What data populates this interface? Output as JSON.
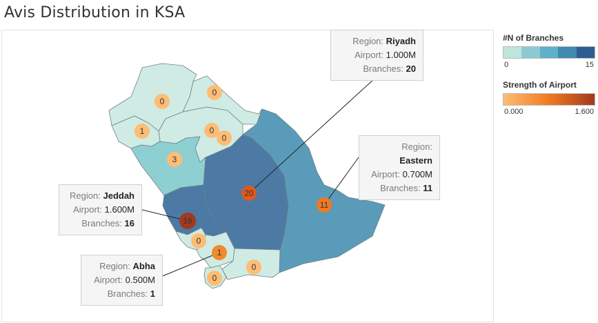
{
  "title": "Avis Distribution in KSA",
  "legend_branches": {
    "title": "#N of Branches",
    "min_label": "0",
    "max_label": "15",
    "colors": [
      "#bde5db",
      "#8ccad3",
      "#5eb1c9",
      "#4189b0",
      "#2e5e91"
    ]
  },
  "legend_strength": {
    "title": "Strength of Airport",
    "min_label": "0.000",
    "max_label": "1.600",
    "color_low": "#fdbd74",
    "color_high": "#a13a1e"
  },
  "tooltips": {
    "riyadh": {
      "region_label": "Region:",
      "region": "Riyadh",
      "airport_label": "Airport:",
      "airport": "1.000M",
      "branches_label": "Branches:",
      "branches": "20"
    },
    "eastern": {
      "region_label": "Region:",
      "region": "Eastern",
      "airport_label": "Airport:",
      "airport": "0.700M",
      "branches_label": "Branches:",
      "branches": "11"
    },
    "jeddah": {
      "region_label": "Region:",
      "region": "Jeddah",
      "airport_label": "Airport:",
      "airport": "1.600M",
      "branches_label": "Branches:",
      "branches": "16"
    },
    "abha": {
      "region_label": "Region:",
      "region": "Abha",
      "airport_label": "Airport:",
      "airport": "0.500M",
      "branches_label": "Branches:",
      "branches": "1"
    }
  },
  "markers": [
    {
      "id": "tabuk",
      "label": "0",
      "branches": 0,
      "color": "#fdbd74"
    },
    {
      "id": "jawf",
      "label": "0",
      "branches": 0,
      "color": "#fdbd74"
    },
    {
      "id": "madinah-north",
      "label": "1",
      "branches": 1,
      "color": "#fdbd74"
    },
    {
      "id": "hail-a",
      "label": "0",
      "branches": 0,
      "color": "#fdbd74"
    },
    {
      "id": "hail-b",
      "label": "0",
      "branches": 0,
      "color": "#fdbd74"
    },
    {
      "id": "madinah",
      "label": "3",
      "branches": 3,
      "color": "#fdbd74"
    },
    {
      "id": "riyadh",
      "label": "20",
      "branches": 20,
      "color": "#e2591b"
    },
    {
      "id": "eastern",
      "label": "11",
      "branches": 11,
      "color": "#ef7a22"
    },
    {
      "id": "jeddah",
      "label": "16",
      "branches": 16,
      "color": "#a13a1e"
    },
    {
      "id": "baha",
      "label": "0",
      "branches": 0,
      "color": "#fdbd74"
    },
    {
      "id": "abha",
      "label": "1",
      "branches": 1,
      "color": "#f08a2a"
    },
    {
      "id": "najran",
      "label": "0",
      "branches": 0,
      "color": "#fdbd74"
    },
    {
      "id": "jazan",
      "label": "0",
      "branches": 0,
      "color": "#fdbd74"
    }
  ]
}
